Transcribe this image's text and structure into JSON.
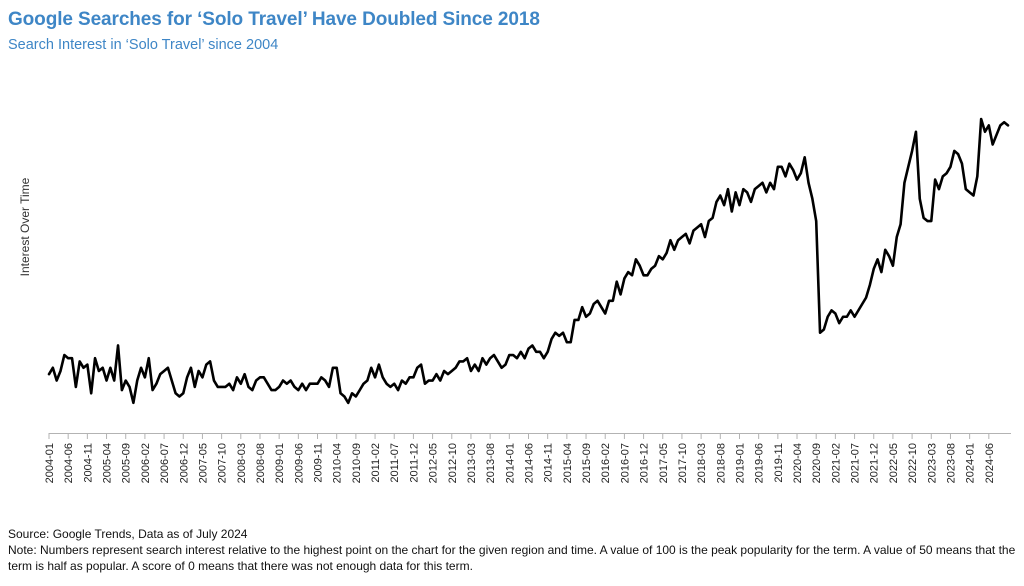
{
  "title": "Google Searches for ‘Solo Travel’ Have Doubled Since 2018",
  "subtitle": "Search Interest in ‘Solo Travel’ since 2004",
  "source": "Source: Google Trends, Data as of July 2024",
  "note": "Note: Numbers represent search interest relative to the highest point on the chart for the given region and time. A value of 100 is the peak popularity for the term. A value of 50 means that the term is half as popular. A score of 0 means that there was not enough data for this term.",
  "chart_data": {
    "type": "line",
    "title": "Search Interest in ‘Solo Travel’ since 2004",
    "ylabel": "Interest Over Time",
    "xlabel": "",
    "x_start": "2004-01",
    "x_end": "2024-07",
    "tick_labels": [
      "2004-01",
      "2004-06",
      "2004-11",
      "2005-04",
      "2005-09",
      "2006-02",
      "2006-07",
      "2006-12",
      "2007-05",
      "2007-10",
      "2008-03",
      "2008-08",
      "2009-01",
      "2009-06",
      "2009-11",
      "2010-04",
      "2010-09",
      "2011-02",
      "2011-07",
      "2011-12",
      "2012-05",
      "2012-10",
      "2013-03",
      "2013-08",
      "2014-01",
      "2014-06",
      "2014-11",
      "2015-04",
      "2015-09",
      "2016-02",
      "2016-07",
      "2016-12",
      "2017-05",
      "2017-10",
      "2018-03",
      "2018-08",
      "2019-01",
      "2019-06",
      "2019-11",
      "2020-04",
      "2020-09",
      "2021-02",
      "2021-07",
      "2021-12",
      "2022-05",
      "2022-10",
      "2023-03",
      "2023-08",
      "2024-01",
      "2024-06"
    ],
    "ylim": [
      0,
      105
    ],
    "y_ticks_shown": false,
    "grid": false,
    "line_color": "#000000",
    "series": [
      {
        "values": [
          15,
          17,
          13,
          16,
          21,
          20,
          20,
          11,
          19,
          17,
          18,
          9,
          20,
          16,
          17,
          13,
          17,
          13,
          24,
          10,
          13,
          11,
          6,
          13,
          17,
          14,
          20,
          10,
          12,
          15,
          16,
          17,
          13,
          9,
          8,
          9,
          14,
          17,
          11,
          16,
          14,
          18,
          19,
          13,
          11,
          11,
          11,
          12,
          10,
          14,
          12,
          15,
          11,
          10,
          13,
          14,
          14,
          12,
          10,
          10,
          11,
          13,
          12,
          13,
          11,
          10,
          12,
          10,
          12,
          12,
          12,
          14,
          13,
          11,
          17,
          17,
          9,
          8,
          6,
          9,
          8,
          10,
          12,
          13,
          17,
          14,
          18,
          14,
          12,
          11,
          12,
          10,
          13,
          12,
          14,
          14,
          17,
          18,
          12,
          13,
          13,
          15,
          13,
          16,
          15,
          16,
          17,
          19,
          19,
          20,
          16,
          18,
          16,
          20,
          18,
          20,
          21,
          19,
          17,
          18,
          21,
          21,
          20,
          22,
          20,
          23,
          24,
          22,
          22,
          20,
          22,
          26,
          28,
          27,
          28,
          25,
          25,
          32,
          32,
          36,
          33,
          34,
          37,
          38,
          36,
          34,
          38,
          38,
          44,
          40,
          45,
          47,
          46,
          51,
          49,
          46,
          46,
          48,
          49,
          52,
          51,
          53,
          57,
          54,
          57,
          58,
          59,
          56,
          60,
          61,
          62,
          58,
          63,
          64,
          69,
          71,
          68,
          73,
          66,
          72,
          68,
          73,
          72,
          69,
          73,
          74,
          75,
          72,
          75,
          73,
          80,
          80,
          77,
          81,
          79,
          76,
          78,
          83,
          75,
          70,
          63,
          28,
          29,
          33,
          35,
          34,
          31,
          33,
          33,
          35,
          33,
          35,
          37,
          39,
          43,
          48,
          51,
          47,
          54,
          52,
          49,
          58,
          62,
          75,
          80,
          85,
          91,
          70,
          64,
          63,
          63,
          76,
          73,
          77,
          78,
          80,
          85,
          84,
          81,
          73,
          72,
          71,
          77,
          95,
          91,
          93,
          87,
          90,
          93,
          94,
          93
        ]
      }
    ]
  }
}
